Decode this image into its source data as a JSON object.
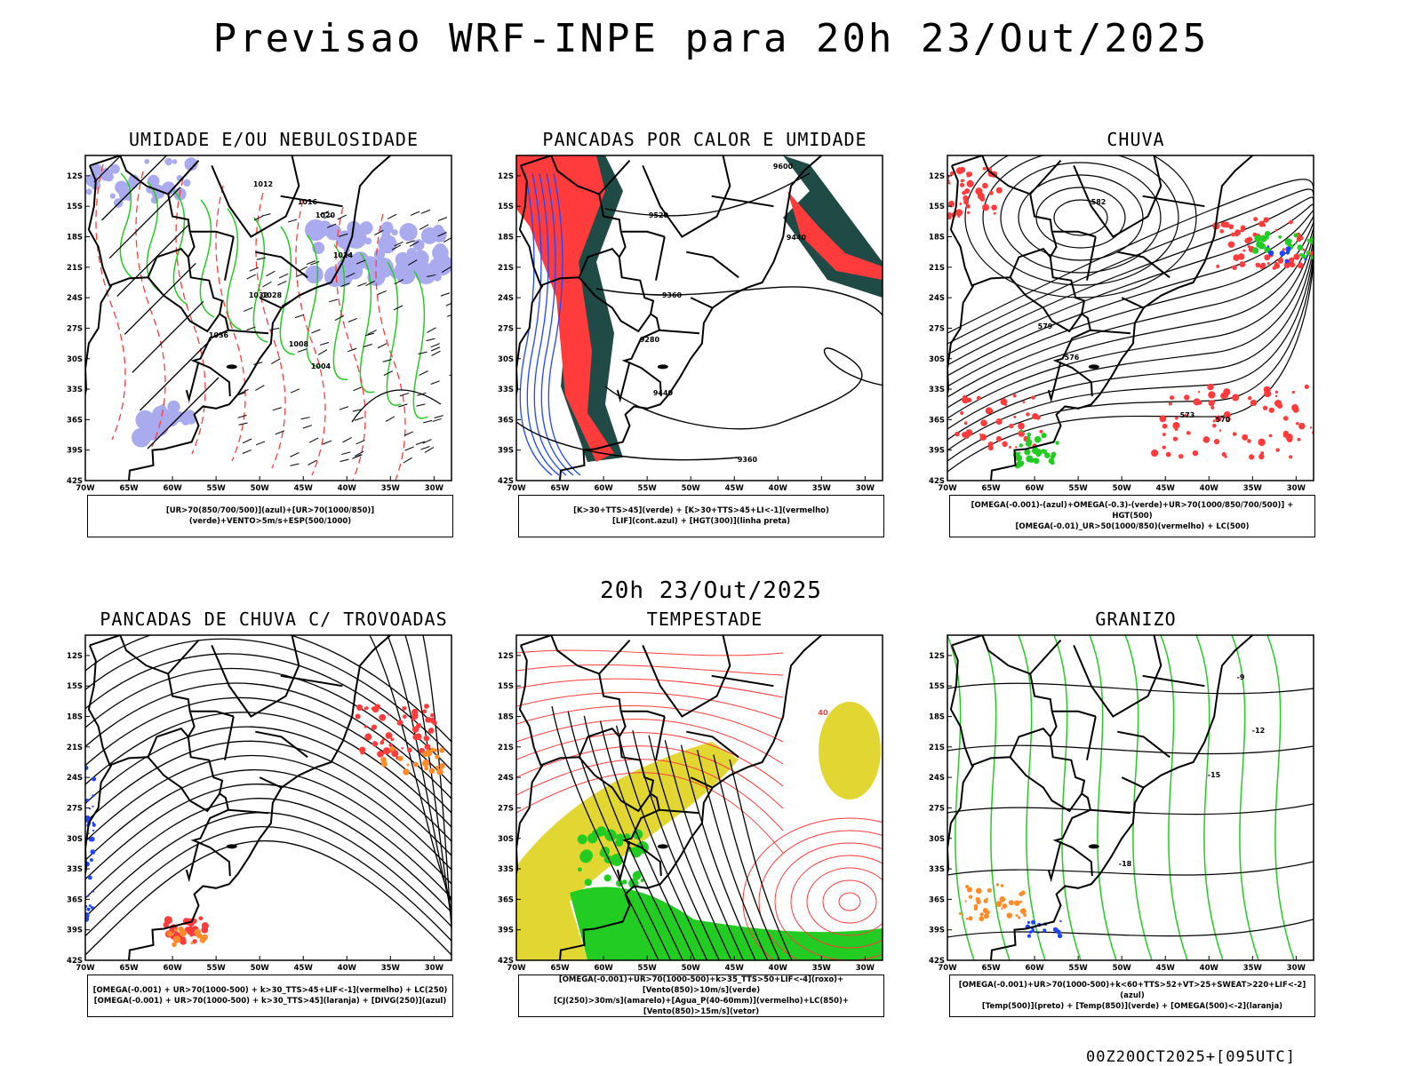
{
  "main_title": "Previsao WRF-INPE  para 20h 23/Out/2025",
  "mid_title": "20h 23/Out/2025",
  "footer": "00Z20OCT2025+[095UTC]",
  "axes": {
    "lat_labels": [
      "12S",
      "15S",
      "18S",
      "21S",
      "24S",
      "27S",
      "30S",
      "33S",
      "36S",
      "39S",
      "42S"
    ],
    "lon_labels": [
      "70W",
      "65W",
      "60W",
      "55W",
      "50W",
      "45W",
      "40W",
      "35W",
      "30W"
    ]
  },
  "colors": {
    "red": "#ff3b3b",
    "green": "#22cc22",
    "blue": "#2244ff",
    "lavender": "#aaaaee",
    "darkgreen": "#1f4a45",
    "yellow": "#e2d732",
    "orange": "#ff8c28"
  },
  "panels": [
    {
      "title": "UMIDADE E/OU NEBULOSIDADE",
      "legend": [
        "[UR>70(850/700/500)](azul)+[UR>70(1000/850)](verde)+VENTO>5m/s+ESP(500/1000)"
      ],
      "contour_labels": [
        "1012",
        "1016",
        "1020",
        "1024",
        "1028",
        "1032",
        "1036",
        "1008",
        "1004"
      ]
    },
    {
      "title": "PANCADAS POR CALOR E UMIDADE",
      "legend": [
        "[K>30+TTS>45](verde) + [K>30+TTS>45+LI<-1](vermelho)",
        "[LIF](cont.azul) + [HGT(300)](linha preta)"
      ],
      "contour_labels": [
        "9600",
        "9520",
        "9440",
        "9360",
        "9280"
      ]
    },
    {
      "title": "CHUVA",
      "legend": [
        "[OMEGA(-0.001)-(azul)+OMEGA(-0.3)-(verde)+UR>70(1000/850/700/500)] + HGT(500)",
        "[OMEGA(-0.01)_UR>50(1000/850)(vermelho) + LC(500)"
      ],
      "contour_labels": [
        "582",
        "579",
        "576",
        "573",
        "570"
      ]
    },
    {
      "title": "PANCADAS DE CHUVA C/ TROVOADAS",
      "legend": [
        "[OMEGA(-0.001) + UR>70(1000-500) + k>30_TTS>45+LIF<-1](vermelho) + LC(250)",
        "[OMEGA(-0.001) + UR>70(1000-500) + k>30_TTS>45](laranja) + [DIVG(250)](azul)"
      ],
      "contour_labels": []
    },
    {
      "title": "TEMPESTADE",
      "legend": [
        "[OMEGA(-0.001)+UR>70(1000-500)+k>35_TTS>50+LIF<-4](roxo)+[Vento(850)>10m/s](verde)",
        "[CJ(250)>30m/s](amarelo)+[Agua_P(40-60mm)](vermelho)+LC(850)+[Vento(850)>15m/s](vetor)"
      ],
      "contour_labels": [
        "40"
      ]
    },
    {
      "title": "GRANIZO",
      "legend": [
        "[OMEGA(-0.001)+UR>70(1000-500)+k<60+TTS>52+VT>25+SWEAT>220+LIF<-2](azul)",
        "[Temp(500)](preto) + [Temp(850)](verde) + [OMEGA(500)<-2](laranja)"
      ],
      "contour_labels": [
        "-9",
        "-12",
        "-15",
        "-18"
      ]
    }
  ]
}
